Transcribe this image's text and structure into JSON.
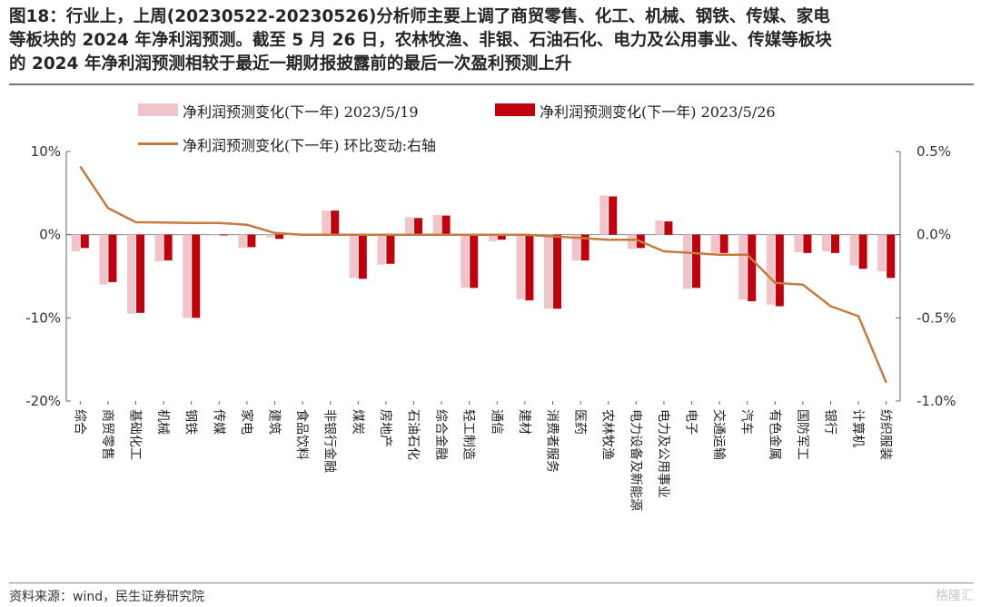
{
  "title_lines": [
    "图18：行业上，上周(20230522-20230526)分析师主要上调了商贸零售、化工、机械、钢铁、传媒、家电",
    "等板块的 2024 年净利润预测。截至 5 月 26 日，农林牧渔、非银、石油石化、电力及公用事业、传媒等板块",
    "的 2024 年净利润预测相较于最近一期财报披露前的最后一次盈利预测上升"
  ],
  "source": "资料来源：wind，民生证券研究院",
  "watermark": "格隆汇",
  "colors": {
    "series1": "#f0c4c8",
    "series2": "#c0000c",
    "line": "#c67b3e"
  },
  "chart_data": {
    "type": "bar",
    "categories": [
      "综合",
      "商贸零售",
      "基础化工",
      "机械",
      "钢铁",
      "传媒",
      "家电",
      "建筑",
      "食品饮料",
      "非银行金融",
      "煤炭",
      "房地产",
      "石油石化",
      "综合金融",
      "轻工制造",
      "通信",
      "建材",
      "消费者服务",
      "医药",
      "农林牧渔",
      "电力设备及新能源",
      "电力及公用事业",
      "电子",
      "交通运输",
      "汽车",
      "有色金属",
      "国防军工",
      "银行",
      "计算机",
      "纺织服装"
    ],
    "series": [
      {
        "name": "净利润预测变化(下一年) 2023/5/19",
        "axis": "left",
        "type": "bar",
        "values": [
          -2.0,
          -6.0,
          -9.5,
          -3.2,
          -10.0,
          0.0,
          -1.6,
          -0.3,
          0.0,
          2.9,
          -5.2,
          -3.6,
          2.1,
          2.4,
          -6.4,
          -0.8,
          -7.8,
          -8.9,
          -3.1,
          4.7,
          -1.7,
          1.7,
          -6.5,
          -2.2,
          -7.8,
          -8.4,
          -2.1,
          -2.0,
          -3.7,
          -4.4
        ]
      },
      {
        "name": "净利润预测变化(下一年) 2023/5/26",
        "axis": "left",
        "type": "bar",
        "values": [
          -1.6,
          -5.7,
          -9.4,
          -3.1,
          -10.0,
          0.0,
          -1.5,
          -0.5,
          0.0,
          2.9,
          -5.3,
          -3.5,
          2.0,
          2.3,
          -6.4,
          -0.6,
          -7.9,
          -8.9,
          -3.1,
          4.6,
          -1.6,
          1.6,
          -6.4,
          -2.2,
          -8.0,
          -8.6,
          -2.2,
          -2.2,
          -4.1,
          -5.2
        ]
      },
      {
        "name": "净利润预测变化(下一年) 环比变动:右轴",
        "axis": "right",
        "type": "line",
        "values": [
          0.41,
          0.16,
          0.075,
          0.073,
          0.071,
          0.071,
          0.06,
          0.01,
          0.0,
          0.0,
          0.0,
          0.0,
          0.0,
          0.0,
          0.0,
          0.0,
          0.0,
          -0.01,
          -0.02,
          -0.03,
          -0.03,
          -0.1,
          -0.11,
          -0.12,
          -0.12,
          -0.29,
          -0.3,
          -0.43,
          -0.49,
          -0.89
        ]
      }
    ],
    "y_left": {
      "ticks": [
        "10%",
        "0%",
        "-10%",
        "-20%"
      ],
      "range": [
        -20,
        10
      ]
    },
    "y_right": {
      "ticks": [
        "0.5%",
        "0.0%",
        "-0.5%",
        "-1.0%"
      ],
      "range": [
        -1.0,
        0.5
      ]
    },
    "grid": false,
    "legend_position": "top"
  }
}
